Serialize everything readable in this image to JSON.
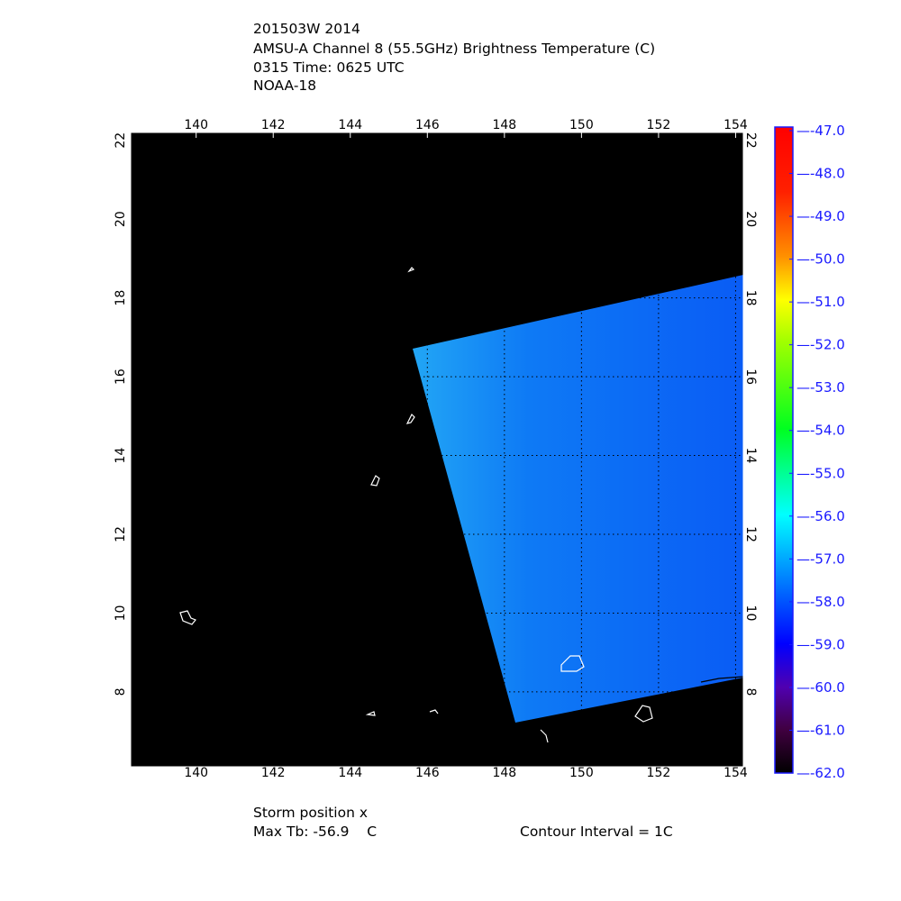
{
  "title": {
    "line1": "201503W 2014",
    "line2": "AMSU-A Channel 8 (55.5GHz) Brightness Temperature (C)",
    "line3": "0315 Time: 0625 UTC",
    "line4": "NOAA-18"
  },
  "map": {
    "lon_range": [
      138.3,
      154.2
    ],
    "lat_range": [
      6.1,
      22.2
    ],
    "lon_ticks": [
      "140",
      "142",
      "144",
      "146",
      "148",
      "150",
      "152",
      "154"
    ],
    "lat_ticks": [
      "22",
      "20",
      "18",
      "16",
      "14",
      "12",
      "10",
      "8"
    ],
    "gridlines": true,
    "background": "#000000",
    "swath_colors": [
      "#1ea0f5",
      "#0a5cf5"
    ]
  },
  "colorbar": {
    "labels": [
      "-47.0",
      "-48.0",
      "-49.0",
      "-50.0",
      "-51.0",
      "-52.0",
      "-53.0",
      "-54.0",
      "-55.0",
      "-56.0",
      "-57.0",
      "-58.0",
      "-59.0",
      "-60.0",
      "-61.0",
      "-62.0"
    ],
    "range": [
      -62.0,
      -47.0
    ],
    "label_color": "#1a1aff"
  },
  "footer": {
    "storm_position": "Storm position x",
    "max_tb": "Max Tb: -56.9    C",
    "contour_interval": "Contour Interval = 1C"
  }
}
